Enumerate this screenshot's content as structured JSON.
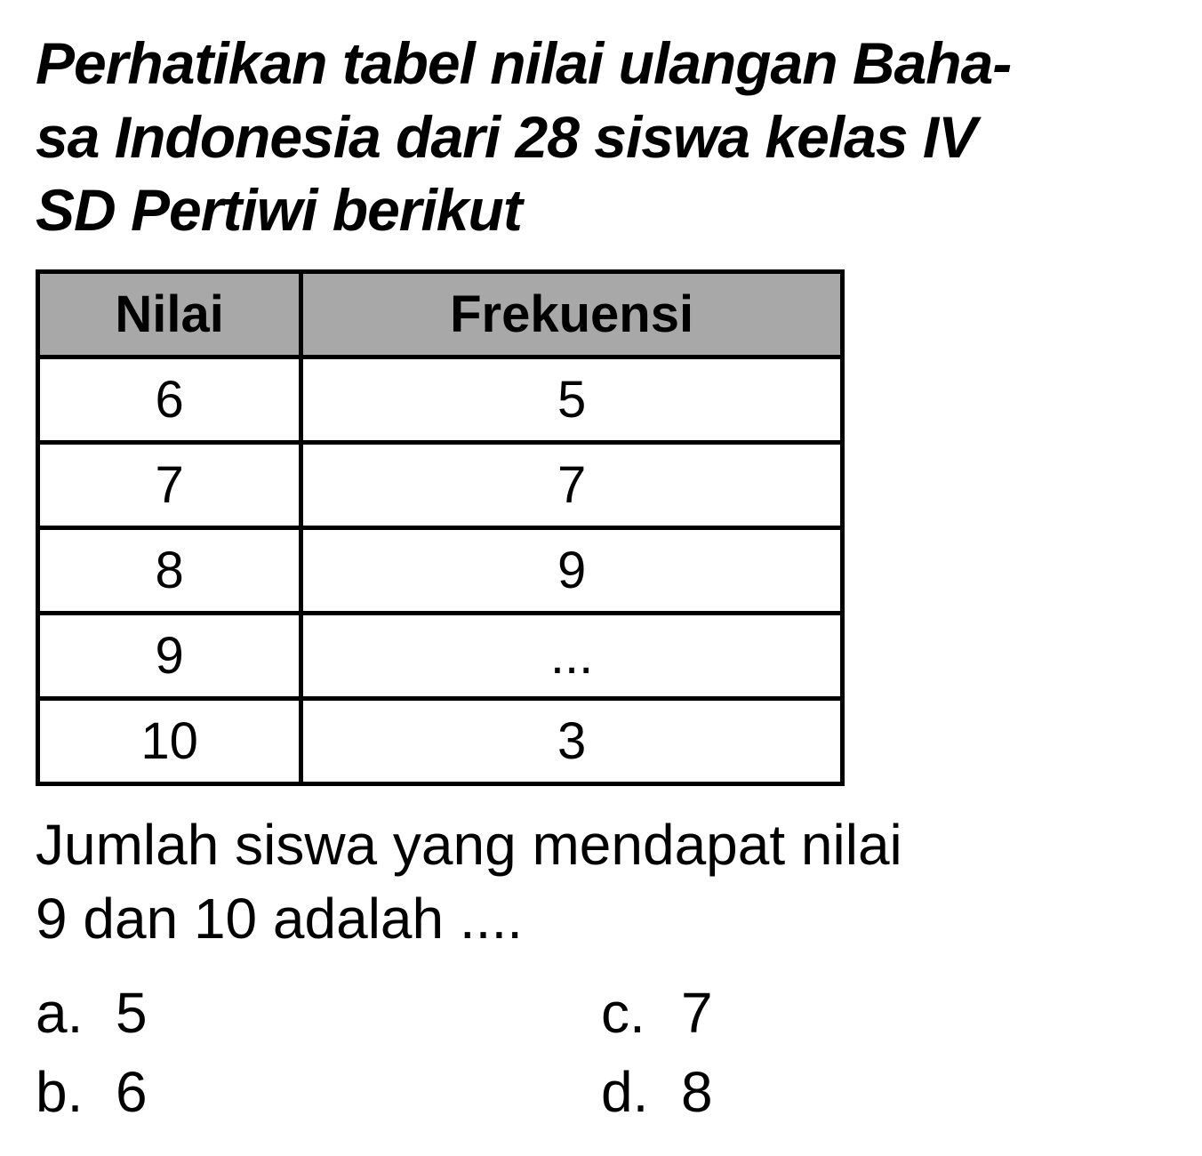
{
  "title": {
    "line1": "Perhatikan tabel nilai ulangan Baha-",
    "line2": "sa Indonesia dari 28 siswa kelas IV",
    "line3": "SD Pertiwi berikut"
  },
  "table": {
    "headers": {
      "col1": "Nilai",
      "col2": "Frekuensi"
    },
    "rows": [
      {
        "nilai": "6",
        "frekuensi": "5"
      },
      {
        "nilai": "7",
        "frekuensi": "7"
      },
      {
        "nilai": "8",
        "frekuensi": "9"
      },
      {
        "nilai": "9",
        "frekuensi": "..."
      },
      {
        "nilai": "10",
        "frekuensi": "3"
      }
    ],
    "header_bg_color": "#a8a8a8",
    "border_color": "#000000",
    "border_width": 5,
    "font_size": 58
  },
  "question": {
    "line1": "Jumlah siswa yang mendapat nilai",
    "line2": "9 dan 10 adalah ...."
  },
  "options": {
    "a": {
      "letter": "a.",
      "value": "5"
    },
    "b": {
      "letter": "b.",
      "value": "6"
    },
    "c": {
      "letter": "c.",
      "value": "7"
    },
    "d": {
      "letter": "d.",
      "value": "8"
    }
  },
  "styling": {
    "title_font_size": 66,
    "title_font_weight": 900,
    "title_font_style": "italic",
    "body_font_size": 64,
    "background_color": "#ffffff",
    "text_color": "#000000"
  }
}
